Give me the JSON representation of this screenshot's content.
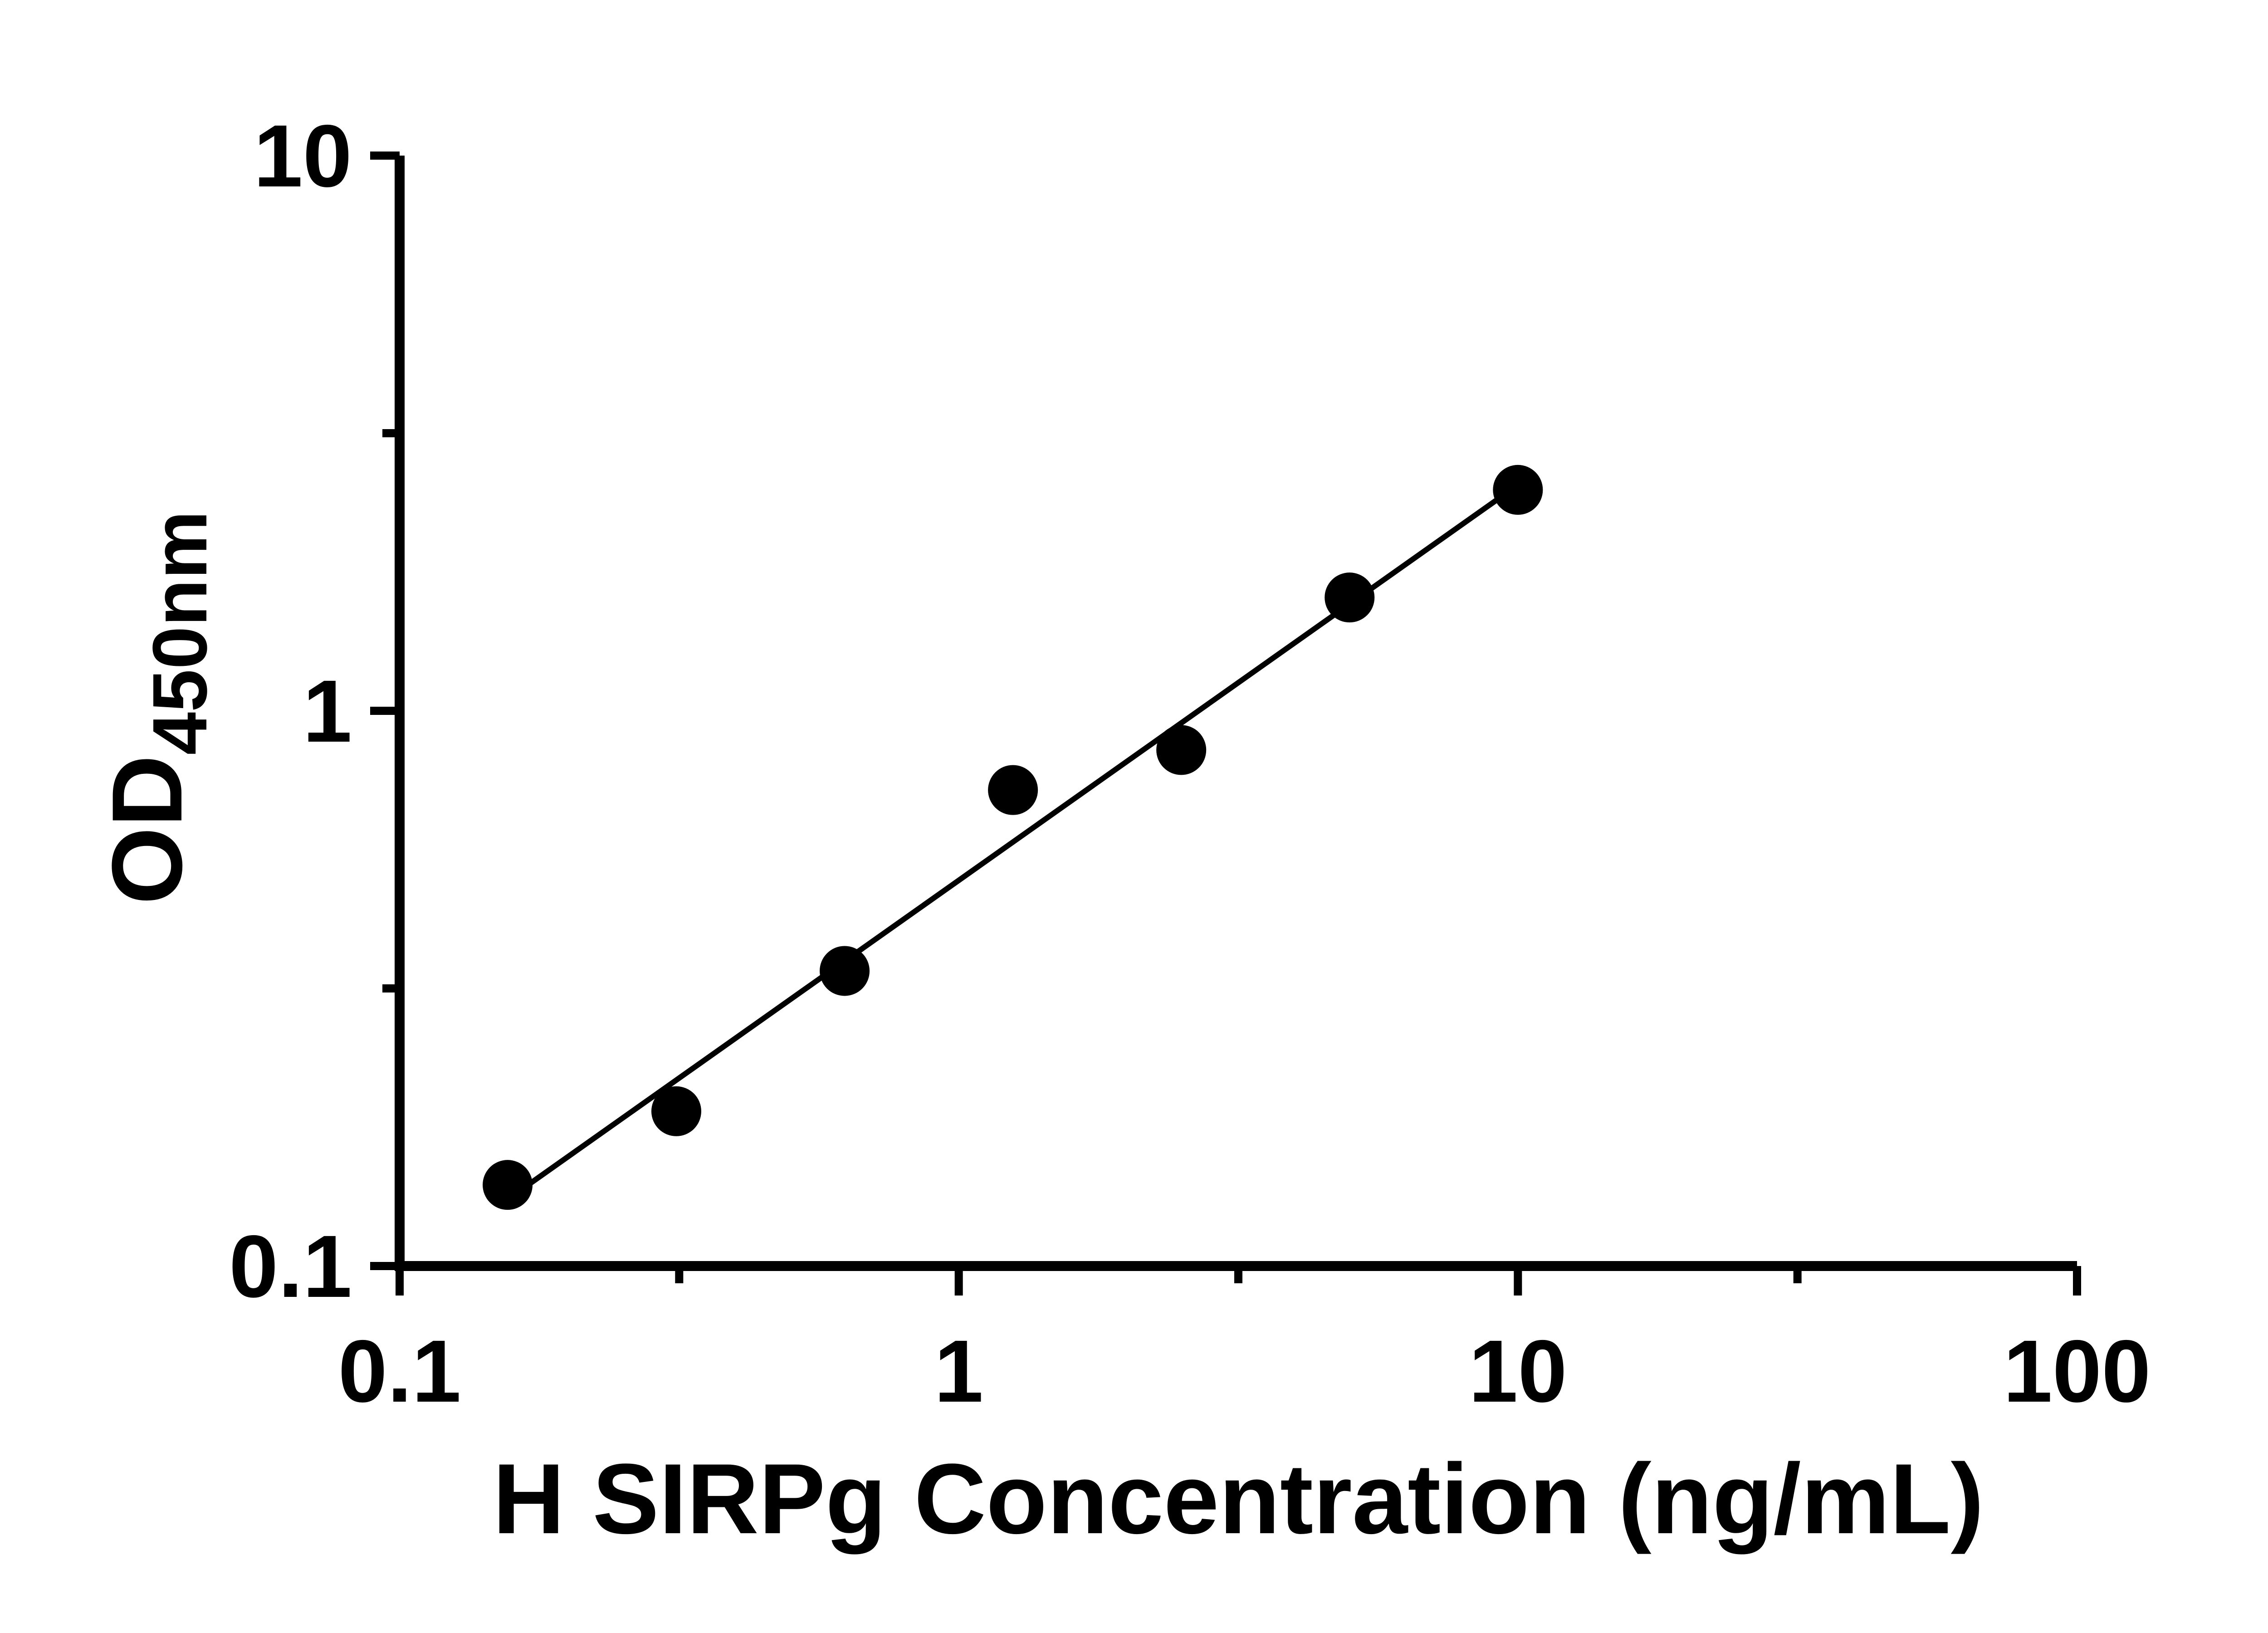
{
  "chart_data": {
    "type": "scatter",
    "title": "",
    "xlabel": "H SIRPg Concentration (ng/mL)",
    "ylabel_main": "OD",
    "ylabel_sub": "450nm",
    "x_scale": "log",
    "y_scale": "log",
    "xlim": [
      0.1,
      100
    ],
    "ylim": [
      0.1,
      10
    ],
    "x_major_ticks": [
      0.1,
      1,
      10,
      100
    ],
    "x_tick_labels": [
      "0.1",
      "1",
      "10",
      "100"
    ],
    "x_minor_ticks": [
      0.31623,
      3.1623,
      31.623
    ],
    "y_major_ticks": [
      0.1,
      1,
      10
    ],
    "y_tick_labels": [
      "0.1",
      "1",
      "10"
    ],
    "y_minor_ticks": [
      0.31623,
      3.1623
    ],
    "points": [
      {
        "x": 0.156,
        "y": 0.14
      },
      {
        "x": 0.3125,
        "y": 0.19
      },
      {
        "x": 0.625,
        "y": 0.34
      },
      {
        "x": 1.25,
        "y": 0.72
      },
      {
        "x": 2.5,
        "y": 0.85
      },
      {
        "x": 5,
        "y": 1.6
      },
      {
        "x": 10,
        "y": 2.5
      }
    ],
    "trendline": {
      "type": "linear least-squares fit in log-log space",
      "x_start": 0.156,
      "x_end": 10
    },
    "legend": "none",
    "grid": false,
    "colors": {
      "points": "#000000",
      "line": "#000000",
      "axes": "#000000",
      "background": "#ffffff"
    }
  }
}
